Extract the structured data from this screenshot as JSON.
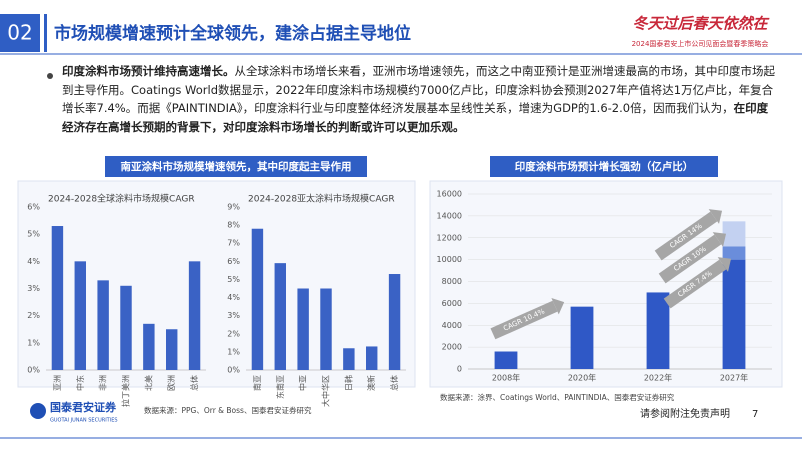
{
  "header": {
    "section": "02",
    "title": "市场规模增速预计全球领先，建涂占据主导地位"
  },
  "logo": {
    "slogan": "冬天过后春天依然在",
    "event": "2024国泰君安上市公司见面会暨春季策略会"
  },
  "body": {
    "lead": "印度涂料市场预计维持高速增长。",
    "text": "从全球涂料市场增长来看，亚洲市场增速领先，而这之中南亚预计是亚洲增速最高的市场，其中印度市场起到主导作用。Coatings World数据显示，2022年印度涂料市场规模约7000亿卢比，印度涂料协会预测2027年产值将达1万亿卢比，年复合增长率7.4%。而据《PAINTINDIA》，印度涂料行业与印度整体经济发展基本呈线性关系，增速为GDP的1.6-2.0倍，因而我们认为，",
    "conclusion": "在印度经济存在高增长预期的背景下，对印度涂料市场增长的判断或许可以更加乐观。"
  },
  "panels": [
    {
      "title": "南亚涂料市场规模增速领先，其中印度起主导作用"
    }
  ],
  "sources": [
    "数据来源：PPG、Orr & Boss、国泰君安证券研究",
    "数据来源：涂界、Coatings World、PAINTINDIA、国泰君安证券研究"
  ],
  "footer": {
    "company": "国泰君安证券",
    "company_en": "GUOTAI JUNAN SECURITIES",
    "disclaimer": "请参阅附注免责声明",
    "page": "7"
  },
  "chart_data": [
    {
      "type": "bar",
      "title": "2024-2028全球涂料市场规模CAGR",
      "categories": [
        "亚洲",
        "中东",
        "非洲",
        "拉丁美洲",
        "北美",
        "欧洲",
        "总体"
      ],
      "values": [
        5.3,
        4.0,
        3.3,
        3.1,
        1.7,
        1.5,
        4.0
      ],
      "color": "#3a62c5",
      "ylim": [
        0,
        6
      ],
      "yticks": [
        {
          "value": 0,
          "label": "0%"
        },
        {
          "value": 1,
          "label": "1%"
        },
        {
          "value": 2,
          "label": "2%"
        },
        {
          "value": 3,
          "label": "3%"
        },
        {
          "value": 4,
          "label": "4%"
        },
        {
          "value": 5,
          "label": "5%"
        },
        {
          "value": 6,
          "label": "6%"
        }
      ],
      "grid": false
    },
    {
      "type": "bar",
      "title": "2024-2028亚太涂料市场规模CAGR",
      "categories": [
        "南亚",
        "东南亚",
        "中亚",
        "大中华区",
        "日韩",
        "澳新",
        "总体"
      ],
      "values": [
        7.8,
        5.9,
        4.5,
        4.5,
        1.2,
        1.3,
        5.3
      ],
      "color": "#3a62c5",
      "ylim": [
        0,
        9
      ],
      "yticks": [
        {
          "value": 0,
          "label": "0%"
        },
        {
          "value": 1,
          "label": "1%"
        },
        {
          "value": 2,
          "label": "2%"
        },
        {
          "value": 3,
          "label": "3%"
        },
        {
          "value": 4,
          "label": "4%"
        },
        {
          "value": 5,
          "label": "5%"
        },
        {
          "value": 6,
          "label": "6%"
        },
        {
          "value": 7,
          "label": "7%"
        },
        {
          "value": 8,
          "label": "8%"
        },
        {
          "value": 9,
          "label": "9%"
        }
      ],
      "grid": false
    },
    {
      "type": "bar",
      "title": "印度涂料市场预计增长强劲（亿卢比）",
      "stacked": true,
      "categories": [
        "2008年",
        "2020年",
        "2022年",
        "2027年"
      ],
      "series": [
        {
          "color": "#2f58c6",
          "values": [
            1600,
            5700,
            7000,
            10000
          ]
        },
        {
          "color": "#6a8ddb",
          "values": [
            null,
            null,
            null,
            1200
          ]
        },
        {
          "color": "#c3d1f1",
          "values": [
            null,
            null,
            null,
            2300
          ]
        }
      ],
      "annotations": [
        "CAGR 10.4%",
        "CAGR 7.4%",
        "CAGR 10%",
        "CAGR 14%"
      ],
      "ylim": [
        0,
        16000
      ],
      "yticks": [
        0,
        2000,
        4000,
        6000,
        8000,
        10000,
        12000,
        14000,
        16000
      ],
      "grid": true
    }
  ]
}
